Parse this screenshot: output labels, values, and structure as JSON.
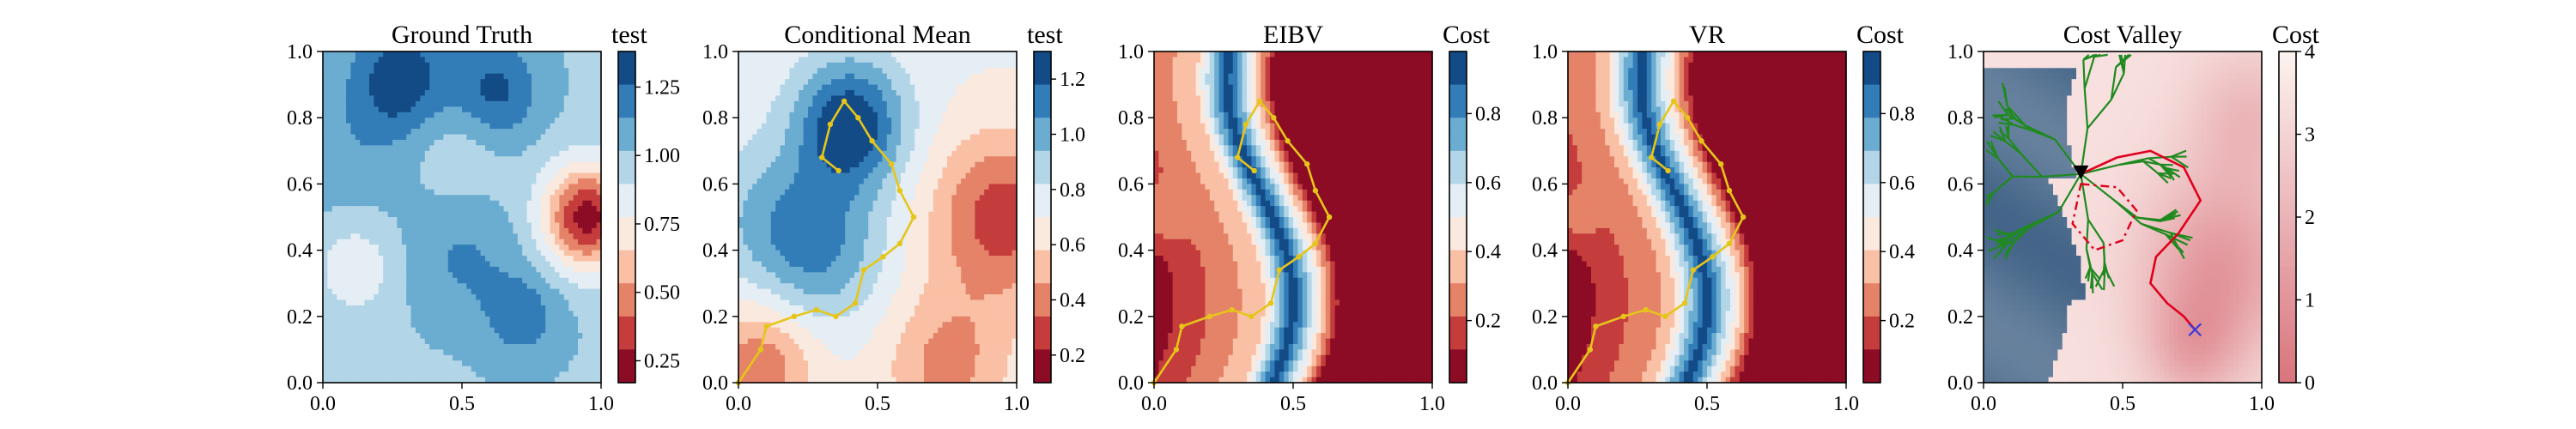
{
  "chart_data": [
    {
      "type": "heatmap",
      "title": "Ground Truth",
      "colorbar_label": "test",
      "colormap": "RdBu",
      "xlim": [
        0,
        1
      ],
      "ylim": [
        0,
        1
      ],
      "x_ticks": [
        "0.0",
        "0.5",
        "1.0"
      ],
      "y_ticks": [
        "0.0",
        "0.2",
        "0.4",
        "0.6",
        "0.8",
        "1.0"
      ],
      "colorbar_range": [
        0.17,
        1.38
      ],
      "colorbar_ticks": [
        "0.25",
        "0.50",
        "0.75",
        "1.00",
        "1.25"
      ],
      "colorbar_tick_values": [
        0.25,
        0.5,
        0.75,
        1.0,
        1.25
      ],
      "field": {
        "base": 1.0,
        "bumps": [
          {
            "x": 0.28,
            "y": 0.92,
            "amp": 0.35,
            "sigma": 0.12
          },
          {
            "x": 0.62,
            "y": 0.88,
            "amp": 0.3,
            "sigma": 0.11
          },
          {
            "x": 0.5,
            "y": 0.38,
            "amp": 0.15,
            "sigma": 0.14
          },
          {
            "x": 0.72,
            "y": 0.2,
            "amp": 0.2,
            "sigma": 0.1
          },
          {
            "x": 0.12,
            "y": 0.35,
            "amp": -0.2,
            "sigma": 0.1
          },
          {
            "x": 0.95,
            "y": 0.5,
            "amp": -0.78,
            "sigma": 0.11
          },
          {
            "x": 0.5,
            "y": 0.7,
            "amp": -0.1,
            "sigma": 0.12
          },
          {
            "x": 0.1,
            "y": 0.7,
            "amp": 0.1,
            "sigma": 0.15
          }
        ]
      }
    },
    {
      "type": "heatmap",
      "title": "Conditional Mean",
      "colorbar_label": "test",
      "colormap": "RdBu",
      "xlim": [
        0,
        1
      ],
      "ylim": [
        0,
        1
      ],
      "x_ticks": [
        "0.0",
        "0.5",
        "1.0"
      ],
      "y_ticks": [
        "0.0",
        "0.2",
        "0.4",
        "0.6",
        "0.8",
        "1.0"
      ],
      "colorbar_range": [
        0.1,
        1.3
      ],
      "colorbar_ticks": [
        "0.2",
        "0.4",
        "0.6",
        "0.8",
        "1.0",
        "1.2"
      ],
      "colorbar_tick_values": [
        0.2,
        0.4,
        0.6,
        0.8,
        1.0,
        1.2
      ],
      "field": {
        "base": 0.72,
        "bumps": [
          {
            "x": 0.4,
            "y": 0.78,
            "amp": 0.58,
            "sigma": 0.14
          },
          {
            "x": 0.3,
            "y": 0.4,
            "amp": 0.32,
            "sigma": 0.16
          },
          {
            "x": 0.1,
            "y": 0.5,
            "amp": 0.2,
            "sigma": 0.16
          },
          {
            "x": 0.95,
            "y": 0.5,
            "amp": -0.45,
            "sigma": 0.18
          },
          {
            "x": 0.08,
            "y": 0.05,
            "amp": -0.35,
            "sigma": 0.14
          },
          {
            "x": 0.75,
            "y": 0.05,
            "amp": -0.3,
            "sigma": 0.16
          }
        ]
      },
      "path": [
        [
          0.0,
          0.0
        ],
        [
          0.08,
          0.1
        ],
        [
          0.1,
          0.17
        ],
        [
          0.2,
          0.2
        ],
        [
          0.28,
          0.22
        ],
        [
          0.35,
          0.2
        ],
        [
          0.42,
          0.24
        ],
        [
          0.45,
          0.34
        ],
        [
          0.52,
          0.38
        ],
        [
          0.58,
          0.42
        ],
        [
          0.63,
          0.5
        ],
        [
          0.58,
          0.58
        ],
        [
          0.55,
          0.66
        ],
        [
          0.48,
          0.73
        ],
        [
          0.43,
          0.8
        ],
        [
          0.38,
          0.85
        ],
        [
          0.33,
          0.78
        ],
        [
          0.3,
          0.68
        ],
        [
          0.36,
          0.64
        ]
      ]
    },
    {
      "type": "heatmap",
      "title": "EIBV",
      "colorbar_label": "Cost",
      "colormap": "RdBu",
      "xlim": [
        0,
        1
      ],
      "ylim": [
        0,
        1
      ],
      "x_ticks": [
        "0.0",
        "0.5",
        "1.0"
      ],
      "y_ticks": [
        "0.0",
        "0.2",
        "0.4",
        "0.6",
        "0.8",
        "1.0"
      ],
      "colorbar_range": [
        0.02,
        0.98
      ],
      "colorbar_ticks": [
        "0.2",
        "0.4",
        "0.6",
        "0.8"
      ],
      "colorbar_tick_values": [
        0.2,
        0.4,
        0.6,
        0.8
      ],
      "field": {
        "type": "band",
        "center": 0.38,
        "amp": 0.12,
        "freq": 1.5,
        "phase": 0.4,
        "width": 0.17,
        "tail": 0.46,
        "right_spots": [
          {
            "x": 0.88,
            "y": 0.68,
            "amp": 0.3,
            "sigma": 0.08
          },
          {
            "x": 0.88,
            "y": 0.25,
            "amp": 0.25,
            "sigma": 0.08
          }
        ]
      },
      "path": [
        [
          0.0,
          0.0
        ],
        [
          0.08,
          0.1
        ],
        [
          0.1,
          0.17
        ],
        [
          0.2,
          0.2
        ],
        [
          0.28,
          0.22
        ],
        [
          0.35,
          0.2
        ],
        [
          0.42,
          0.24
        ],
        [
          0.45,
          0.34
        ],
        [
          0.52,
          0.38
        ],
        [
          0.58,
          0.42
        ],
        [
          0.63,
          0.5
        ],
        [
          0.58,
          0.58
        ],
        [
          0.55,
          0.66
        ],
        [
          0.48,
          0.73
        ],
        [
          0.43,
          0.8
        ],
        [
          0.38,
          0.85
        ],
        [
          0.33,
          0.78
        ],
        [
          0.3,
          0.68
        ],
        [
          0.36,
          0.64
        ]
      ]
    },
    {
      "type": "heatmap",
      "title": "VR",
      "colorbar_label": "Cost",
      "colormap": "RdBu",
      "xlim": [
        0,
        1
      ],
      "ylim": [
        0,
        1
      ],
      "x_ticks": [
        "0.0",
        "0.5",
        "1.0"
      ],
      "y_ticks": [
        "0.0",
        "0.2",
        "0.4",
        "0.6",
        "0.8",
        "1.0"
      ],
      "colorbar_range": [
        0.02,
        0.98
      ],
      "colorbar_ticks": [
        "0.2",
        "0.4",
        "0.6",
        "0.8"
      ],
      "colorbar_tick_values": [
        0.2,
        0.4,
        0.6,
        0.8
      ],
      "field": {
        "type": "band",
        "center": 0.38,
        "amp": 0.12,
        "freq": 1.5,
        "phase": 0.4,
        "width": 0.19,
        "tail": 0.44,
        "right_spots": [
          {
            "x": 0.88,
            "y": 0.72,
            "amp": 0.3,
            "sigma": 0.07
          },
          {
            "x": 0.88,
            "y": 0.22,
            "amp": 0.35,
            "sigma": 0.09
          }
        ]
      },
      "path": [
        [
          0.0,
          0.0
        ],
        [
          0.08,
          0.1
        ],
        [
          0.1,
          0.17
        ],
        [
          0.2,
          0.2
        ],
        [
          0.28,
          0.22
        ],
        [
          0.35,
          0.2
        ],
        [
          0.42,
          0.24
        ],
        [
          0.45,
          0.34
        ],
        [
          0.52,
          0.38
        ],
        [
          0.58,
          0.42
        ],
        [
          0.63,
          0.5
        ],
        [
          0.58,
          0.58
        ],
        [
          0.55,
          0.66
        ],
        [
          0.48,
          0.73
        ],
        [
          0.43,
          0.8
        ],
        [
          0.38,
          0.85
        ],
        [
          0.33,
          0.78
        ],
        [
          0.3,
          0.68
        ],
        [
          0.36,
          0.64
        ]
      ]
    },
    {
      "type": "heatmap",
      "title": "Cost Valley",
      "colorbar_label": "Cost",
      "colormap": "Reds",
      "xlim": [
        0,
        1
      ],
      "ylim": [
        0,
        1
      ],
      "x_ticks": [
        "0.0",
        "0.5",
        "1.0"
      ],
      "y_ticks": [
        "0.0",
        "0.2",
        "0.4",
        "0.6",
        "0.8",
        "1.0"
      ],
      "colorbar_range": [
        0,
        4
      ],
      "colorbar_ticks": [
        "0",
        "1",
        "2",
        "3",
        "4"
      ],
      "colorbar_tick_values": [
        0,
        1,
        2,
        3,
        4
      ],
      "colors": {
        "blocked": "#4a6a8c",
        "valley_low": "#fcf3f0",
        "valley_high": "#d9747d",
        "tree": "#1f8a1f",
        "route": "#e0001b",
        "polygon": "#e0001b",
        "current_marker": "#000000",
        "target_marker": "#3b3bdc"
      },
      "tree_root": [
        0.35,
        0.63
      ],
      "route": [
        [
          0.35,
          0.63
        ],
        [
          0.48,
          0.68
        ],
        [
          0.6,
          0.7
        ],
        [
          0.72,
          0.65
        ],
        [
          0.78,
          0.55
        ],
        [
          0.7,
          0.45
        ],
        [
          0.62,
          0.38
        ],
        [
          0.6,
          0.3
        ],
        [
          0.66,
          0.24
        ],
        [
          0.72,
          0.2
        ],
        [
          0.76,
          0.16
        ]
      ],
      "polygon": [
        [
          0.35,
          0.6
        ],
        [
          0.48,
          0.59
        ],
        [
          0.55,
          0.52
        ],
        [
          0.5,
          0.43
        ],
        [
          0.4,
          0.4
        ],
        [
          0.32,
          0.48
        ]
      ],
      "current_position": [
        0.35,
        0.63
      ],
      "target": [
        0.76,
        0.16
      ]
    }
  ]
}
